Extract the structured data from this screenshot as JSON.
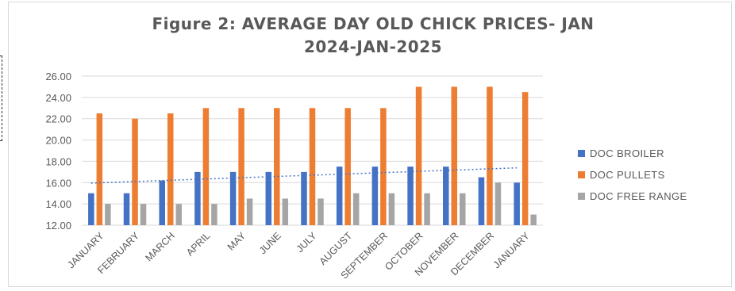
{
  "chart_data": {
    "type": "bar",
    "title": "Figure 2: AVERAGE DAY OLD CHICK PRICES- JAN 2024-JAN-2025",
    "title_line1": "Figure 2: AVERAGE DAY OLD CHICK PRICES- JAN",
    "title_line2": "2024-JAN-2025",
    "categories": [
      "JANUARY",
      "FEBRUARY",
      "MARCH",
      "APRIL",
      "MAY",
      "JUNE",
      "JULY",
      "AUGUST",
      "SEPTEMBER",
      "OCTOBER",
      "NOVEMBER",
      "DECEMBER",
      "JANUARY"
    ],
    "series": [
      {
        "name": "DOC BROILER",
        "color": "#4472C4",
        "values": [
          15,
          15,
          16.2,
          17,
          17,
          17,
          17,
          17.5,
          17.5,
          17.5,
          17.5,
          16.5,
          16
        ]
      },
      {
        "name": "DOC PULLETS",
        "color": "#ED7D31",
        "values": [
          22.5,
          22,
          22.5,
          23,
          23,
          23,
          23,
          23,
          23,
          25,
          25,
          25,
          24.5
        ]
      },
      {
        "name": "DOC FREE RANGE",
        "color": "#A5A5A5",
        "values": [
          14,
          14,
          14,
          14,
          14.5,
          14.5,
          14.5,
          15,
          15,
          15,
          15,
          16,
          13
        ]
      }
    ],
    "trendline": {
      "series": "DOC BROILER",
      "style": "dotted",
      "color": "#4472C4"
    },
    "ylim": [
      12,
      26
    ],
    "yticks": [
      "12.00",
      "14.00",
      "16.00",
      "18.00",
      "20.00",
      "22.00",
      "24.00",
      "26.00"
    ],
    "grid": true,
    "legend_position": "right",
    "xlabel": "",
    "ylabel": ""
  }
}
